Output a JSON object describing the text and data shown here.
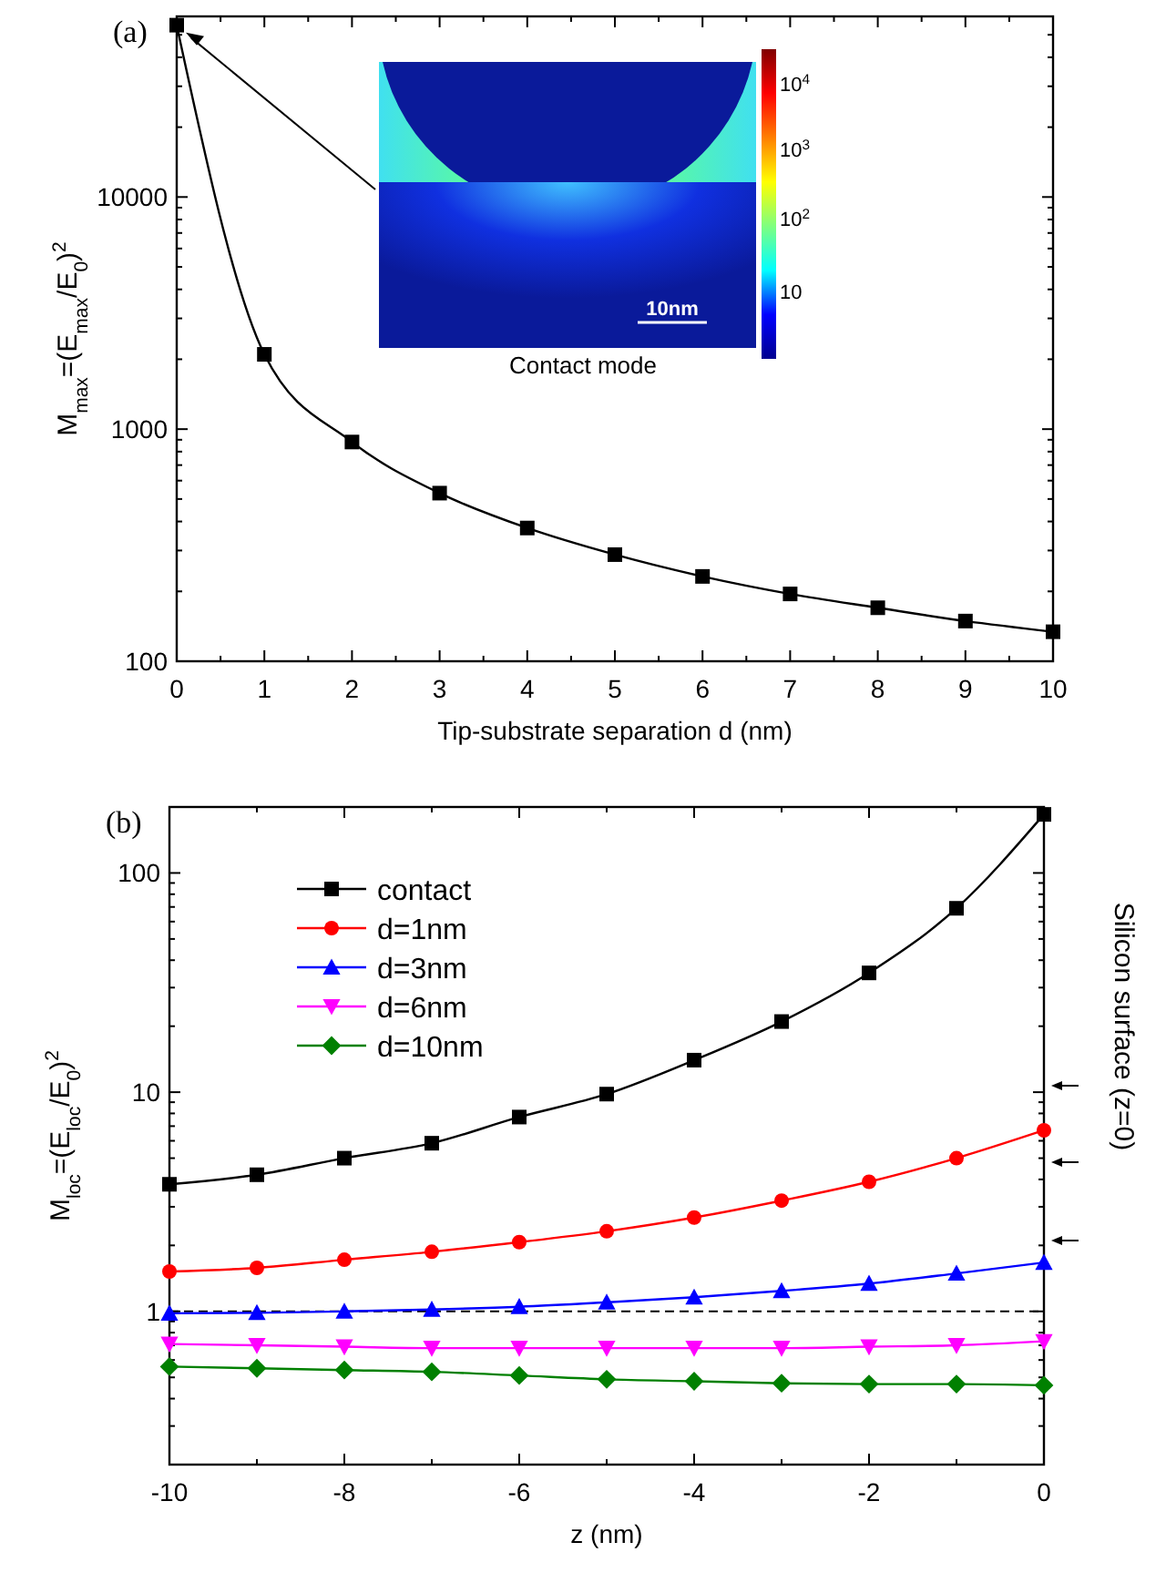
{
  "chart_data": [
    {
      "type": "line",
      "title": "(a)",
      "xlabel": "Tip-substrate separation d (nm)",
      "ylabel": "M$_{max}$=(E$_{max}$/E$_{0}$)$^{2}$",
      "log": "y",
      "marker": "square",
      "legend": false,
      "x": [
        0,
        1,
        2,
        3,
        4,
        5,
        6,
        7,
        8,
        9,
        10
      ],
      "xlim": [
        0,
        10
      ],
      "xticks": [
        0,
        1,
        2,
        3,
        4,
        5,
        6,
        7,
        8,
        9,
        10
      ],
      "ylim": [
        100,
        60000
      ],
      "yticks": [
        100,
        1000,
        10000
      ],
      "series": [
        {
          "color": "#000000",
          "values": [
            55000,
            2100,
            880,
            530,
            375,
            288,
            232,
            195,
            170,
            149,
            134
          ]
        }
      ],
      "annotations": [
        "Contact mode",
        "10nm",
        "10",
        "10$^{2}$",
        "10$^{3}$",
        "10$^{4}$"
      ]
    },
    {
      "type": "line",
      "title": "(b)",
      "xlabel": "z (nm)",
      "ylabel": "M$_{loc}$=(E$_{loc}$/E$_{0}$)$^{2}$",
      "log": "y",
      "legend": "top left",
      "x": [
        -10,
        -9,
        -8,
        -7,
        -6,
        -5,
        -4,
        -3,
        -2,
        -1,
        0
      ],
      "xlim": [
        -10,
        0
      ],
      "xticks": [
        -10,
        -8,
        -6,
        -4,
        -2,
        0
      ],
      "ylim": [
        0.2,
        200
      ],
      "yticks": [
        1,
        10,
        100
      ],
      "series": [
        {
          "name": "contact",
          "color": "#000000",
          "marker": "square",
          "values": [
            3.8,
            4.2,
            5.0,
            5.85,
            7.7,
            9.8,
            14,
            21,
            35,
            69,
            185
          ]
        },
        {
          "name": "d=1nm",
          "color": "#ff0000",
          "marker": "circle",
          "values": [
            1.52,
            1.58,
            1.72,
            1.87,
            2.07,
            2.32,
            2.68,
            3.2,
            3.9,
            5.0,
            6.7
          ]
        },
        {
          "name": "d=3nm",
          "color": "#0000ff",
          "marker": "triangle",
          "values": [
            0.98,
            0.985,
            1.0,
            1.02,
            1.05,
            1.1,
            1.16,
            1.24,
            1.34,
            1.49,
            1.67
          ]
        },
        {
          "name": "d=6nm",
          "color": "#ff00ff",
          "marker": "triangle-down",
          "values": [
            0.71,
            0.7,
            0.69,
            0.68,
            0.68,
            0.68,
            0.68,
            0.68,
            0.69,
            0.7,
            0.73
          ]
        },
        {
          "name": "d=10nm",
          "color": "#008000",
          "marker": "diamond",
          "values": [
            0.56,
            0.55,
            0.54,
            0.53,
            0.51,
            0.49,
            0.48,
            0.47,
            0.466,
            0.466,
            0.46
          ]
        }
      ],
      "ref_lines": [
        {
          "axis": "y",
          "value": 1,
          "color": "#000000",
          "line_style": "dashed"
        }
      ],
      "annotations": [
        "Silicon surface (z=0)"
      ]
    }
  ]
}
